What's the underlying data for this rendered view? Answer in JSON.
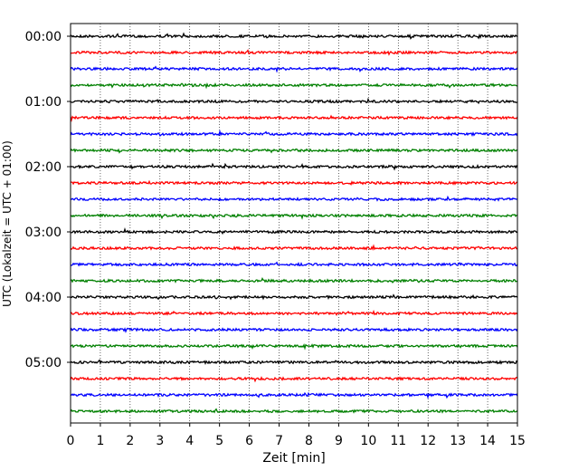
{
  "chart_data": {
    "type": "line",
    "title": "",
    "xlabel": "Zeit  [min]",
    "ylabel": "UTC (Lokalzeit = UTC + 01:00)",
    "x_ticks": [
      "0",
      "1",
      "2",
      "3",
      "4",
      "5",
      "6",
      "7",
      "8",
      "9",
      "10",
      "11",
      "12",
      "13",
      "14",
      "15"
    ],
    "xlim": [
      0,
      15
    ],
    "y_tick_labels": [
      "00:00",
      "01:00",
      "02:00",
      "03:00",
      "04:00",
      "05:00"
    ],
    "traces_per_hour": 4,
    "trace_minutes": 15,
    "trace_count": 24,
    "trace_colors": [
      "#000000",
      "#ff0000",
      "#0000ff",
      "#008000"
    ],
    "grid": "vertical-dotted",
    "legend": "none"
  }
}
